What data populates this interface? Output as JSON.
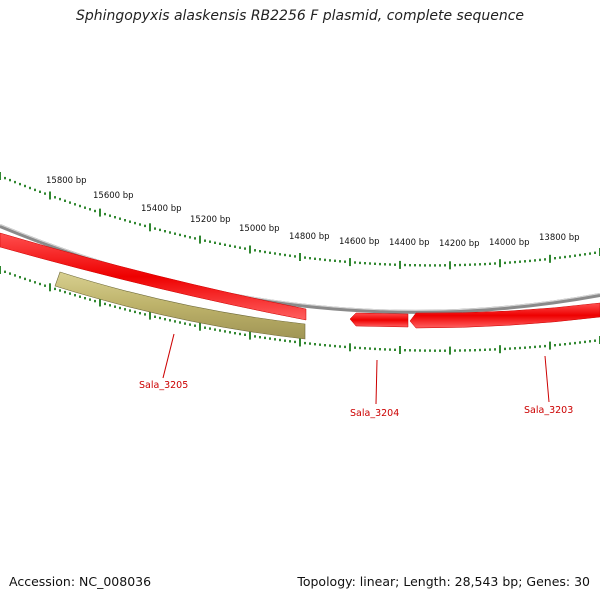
{
  "title": "Sphingopyxis alaskensis RB2256 F plasmid, complete sequence",
  "footer": {
    "accession": "Accession: NC_008036",
    "topology": "Topology: linear; Length: 28,543 bp; Genes: 30"
  },
  "ruler": {
    "color": "#1a7a1a",
    "labels": [
      "15800 bp",
      "15600 bp",
      "15400 bp",
      "15200 bp",
      "15000 bp",
      "14800 bp",
      "14600 bp",
      "14400 bp",
      "14200 bp",
      "14000 bp",
      "13800 bp"
    ]
  },
  "backbone_color": "#8a8a8a",
  "genes": [
    {
      "name": "Sala_3205",
      "color": "#c8c078",
      "strand": "reverse"
    },
    {
      "name": "Sala_3204",
      "color": "#ee0000",
      "strand": "forward"
    },
    {
      "name": "Sala_3203",
      "color": "#ee0000",
      "strand": "forward"
    }
  ]
}
